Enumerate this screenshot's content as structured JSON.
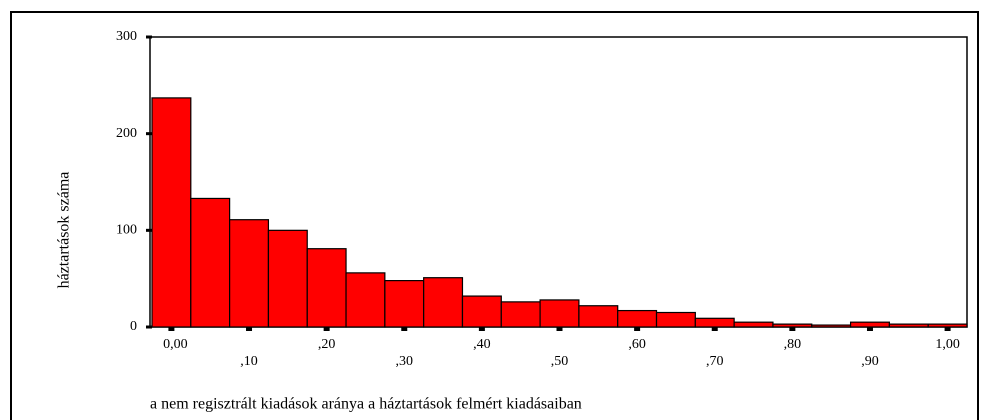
{
  "chart_data": {
    "type": "histogram",
    "ylabel": "háztartások száma",
    "xlabel": "a nem regisztrált kiadások aránya a háztartások felmért kiadásaiban",
    "bins": [
      -0.025,
      0.025,
      0.075,
      0.125,
      0.175,
      0.225,
      0.275,
      0.325,
      0.375,
      0.425,
      0.475,
      0.525,
      0.575,
      0.625,
      0.675,
      0.725,
      0.775,
      0.825,
      0.875,
      0.925,
      0.975,
      1.025
    ],
    "values": [
      237,
      133,
      111,
      100,
      81,
      56,
      48,
      51,
      32,
      26,
      28,
      22,
      17,
      15,
      9,
      5,
      3,
      2,
      5,
      3,
      3
    ],
    "color": "#ff0000",
    "xlim": [
      -0.025,
      1.025
    ],
    "ylim": [
      0,
      300
    ],
    "yticks": [
      0,
      100,
      200,
      300
    ],
    "xticks": [
      {
        "value": 0,
        "label": "0,00"
      },
      {
        "value": 0.1,
        "label": ",10"
      },
      {
        "value": 0.2,
        "label": ",20"
      },
      {
        "value": 0.3,
        "label": ",30"
      },
      {
        "value": 0.4,
        "label": ",40"
      },
      {
        "value": 0.5,
        "label": ",50"
      },
      {
        "value": 0.6,
        "label": ",60"
      },
      {
        "value": 0.7,
        "label": ",70"
      },
      {
        "value": 0.8,
        "label": ",80"
      },
      {
        "value": 0.9,
        "label": ",90"
      },
      {
        "value": 1.0,
        "label": "1,00"
      }
    ]
  }
}
